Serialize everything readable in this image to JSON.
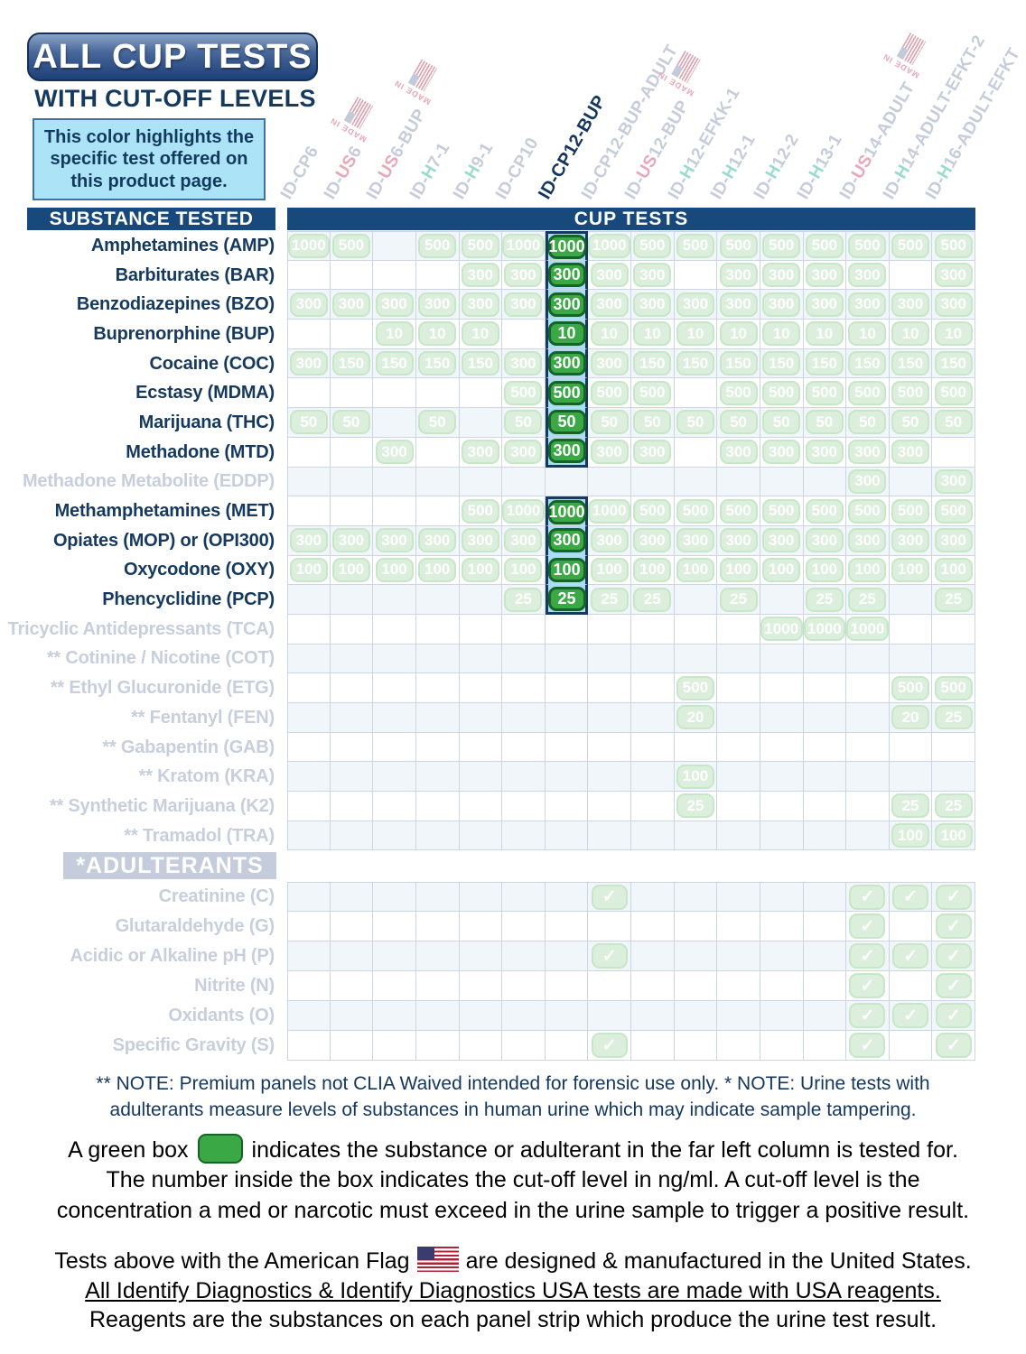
{
  "header": {
    "title": "ALL CUP TESTS",
    "subtitle": "WITH CUT-OFF LEVELS",
    "callout": "This color highlights the specific test offered on this product page."
  },
  "chart_data": {
    "type": "table",
    "title": "ALL CUP TESTS WITH CUT-OFF LEVELS",
    "units": "ng/ml",
    "section_headers": {
      "left": "SUBSTANCE TESTED",
      "right": "CUP TESTS"
    },
    "made_in_label": "MADE IN",
    "highlight_column": "ID-CP12-BUP",
    "columns": [
      {
        "label": "ID-CP6",
        "accent": null,
        "flag": false,
        "highlight": false
      },
      {
        "label": "ID-US6",
        "accent": "US",
        "flag": true,
        "highlight": false
      },
      {
        "label": "ID-US6-BUP",
        "accent": "US",
        "flag": true,
        "highlight": false
      },
      {
        "label": "ID-H7-1",
        "accent": "H",
        "flag": false,
        "highlight": false
      },
      {
        "label": "ID-H9-1",
        "accent": "H",
        "flag": false,
        "highlight": false
      },
      {
        "label": "ID-CP10",
        "accent": null,
        "flag": false,
        "highlight": false
      },
      {
        "label": "ID-CP12-BUP",
        "accent": null,
        "flag": false,
        "highlight": true
      },
      {
        "label": "ID-CP12-BUP-ADULT",
        "accent": null,
        "flag": false,
        "highlight": false
      },
      {
        "label": "ID-US12-BUP",
        "accent": "US",
        "flag": true,
        "highlight": false
      },
      {
        "label": "ID-H12-EFKK-1",
        "accent": "H",
        "flag": false,
        "highlight": false
      },
      {
        "label": "ID-H12-1",
        "accent": "H",
        "flag": false,
        "highlight": false
      },
      {
        "label": "ID-H12-2",
        "accent": "H",
        "flag": false,
        "highlight": false
      },
      {
        "label": "ID-H13-1",
        "accent": "H",
        "flag": false,
        "highlight": false
      },
      {
        "label": "ID-US14-ADULT",
        "accent": "US",
        "flag": true,
        "highlight": false
      },
      {
        "label": "ID-H14-ADULT-EFKT-2",
        "accent": "H",
        "flag": false,
        "highlight": false
      },
      {
        "label": "ID-H16-ADULT-EFKT",
        "accent": "H",
        "flag": false,
        "highlight": false
      }
    ],
    "substances": [
      {
        "label": "Amphetamines (AMP)",
        "active": true,
        "values": [
          "1000",
          "500",
          "",
          "500",
          "500",
          "1000",
          "1000",
          "1000",
          "500",
          "500",
          "500",
          "500",
          "500",
          "500",
          "500",
          "500"
        ]
      },
      {
        "label": "Barbiturates (BAR)",
        "active": true,
        "values": [
          "",
          "",
          "",
          "",
          "300",
          "300",
          "300",
          "300",
          "300",
          "",
          "300",
          "300",
          "300",
          "300",
          "",
          "300"
        ]
      },
      {
        "label": "Benzodiazepines (BZO)",
        "active": true,
        "values": [
          "300",
          "300",
          "300",
          "300",
          "300",
          "300",
          "300",
          "300",
          "300",
          "300",
          "300",
          "300",
          "300",
          "300",
          "300",
          "300"
        ]
      },
      {
        "label": "Buprenorphine (BUP)",
        "active": true,
        "values": [
          "",
          "",
          "10",
          "10",
          "10",
          "",
          "10",
          "10",
          "10",
          "10",
          "10",
          "10",
          "10",
          "10",
          "10",
          "10"
        ]
      },
      {
        "label": "Cocaine (COC)",
        "active": true,
        "values": [
          "300",
          "150",
          "150",
          "150",
          "150",
          "300",
          "300",
          "300",
          "150",
          "150",
          "150",
          "150",
          "150",
          "150",
          "150",
          "150"
        ]
      },
      {
        "label": "Ecstasy (MDMA)",
        "active": true,
        "values": [
          "",
          "",
          "",
          "",
          "",
          "500",
          "500",
          "500",
          "500",
          "",
          "500",
          "500",
          "500",
          "500",
          "500",
          "500"
        ]
      },
      {
        "label": "Marijuana (THC)",
        "active": true,
        "values": [
          "50",
          "50",
          "",
          "50",
          "",
          "50",
          "50",
          "50",
          "50",
          "50",
          "50",
          "50",
          "50",
          "50",
          "50",
          "50"
        ]
      },
      {
        "label": "Methadone (MTD)",
        "active": true,
        "values": [
          "",
          "",
          "300",
          "",
          "300",
          "300",
          "300",
          "300",
          "300",
          "",
          "300",
          "300",
          "300",
          "300",
          "300",
          ""
        ]
      },
      {
        "label": "Methadone Metabolite (EDDP)",
        "active": false,
        "values": [
          "",
          "",
          "",
          "",
          "",
          "",
          "",
          "",
          "",
          "",
          "",
          "",
          "",
          "300",
          "",
          "300"
        ]
      },
      {
        "label": "Methamphetamines (MET)",
        "active": true,
        "values": [
          "",
          "",
          "",
          "",
          "500",
          "1000",
          "1000",
          "1000",
          "500",
          "500",
          "500",
          "500",
          "500",
          "500",
          "500",
          "500"
        ]
      },
      {
        "label": "Opiates (MOP) or (OPI300)",
        "active": true,
        "values": [
          "300",
          "300",
          "300",
          "300",
          "300",
          "300",
          "300",
          "300",
          "300",
          "300",
          "300",
          "300",
          "300",
          "300",
          "300",
          "300"
        ]
      },
      {
        "label": "Oxycodone (OXY)",
        "active": true,
        "values": [
          "100",
          "100",
          "100",
          "100",
          "100",
          "100",
          "100",
          "100",
          "100",
          "100",
          "100",
          "100",
          "100",
          "100",
          "100",
          "100"
        ]
      },
      {
        "label": "Phencyclidine (PCP)",
        "active": true,
        "values": [
          "",
          "",
          "",
          "",
          "",
          "25",
          "25",
          "25",
          "25",
          "",
          "25",
          "",
          "25",
          "25",
          "",
          "25"
        ]
      },
      {
        "label": "Tricyclic Antidepressants (TCA)",
        "active": false,
        "values": [
          "",
          "",
          "",
          "",
          "",
          "",
          "",
          "",
          "",
          "",
          "",
          "1000",
          "1000",
          "1000",
          "",
          ""
        ]
      },
      {
        "label": "** Cotinine / Nicotine (COT)",
        "active": false,
        "values": [
          "",
          "",
          "",
          "",
          "",
          "",
          "",
          "",
          "",
          "",
          "",
          "",
          "",
          "",
          "",
          ""
        ]
      },
      {
        "label": "** Ethyl Glucuronide (ETG)",
        "active": false,
        "values": [
          "",
          "",
          "",
          "",
          "",
          "",
          "",
          "",
          "",
          "500",
          "",
          "",
          "",
          "",
          "500",
          "500"
        ]
      },
      {
        "label": "** Fentanyl (FEN)",
        "active": false,
        "values": [
          "",
          "",
          "",
          "",
          "",
          "",
          "",
          "",
          "",
          "20",
          "",
          "",
          "",
          "",
          "20",
          "25"
        ]
      },
      {
        "label": "** Gabapentin (GAB)",
        "active": false,
        "values": [
          "",
          "",
          "",
          "",
          "",
          "",
          "",
          "",
          "",
          "",
          "",
          "",
          "",
          "",
          "",
          ""
        ]
      },
      {
        "label": "** Kratom (KRA)",
        "active": false,
        "values": [
          "",
          "",
          "",
          "",
          "",
          "",
          "",
          "",
          "",
          "100",
          "",
          "",
          "",
          "",
          "",
          ""
        ]
      },
      {
        "label": "** Synthetic Marijuana (K2)",
        "active": false,
        "values": [
          "",
          "",
          "",
          "",
          "",
          "",
          "",
          "",
          "",
          "25",
          "",
          "",
          "",
          "",
          "25",
          "25"
        ]
      },
      {
        "label": "** Tramadol (TRA)",
        "active": false,
        "values": [
          "",
          "",
          "",
          "",
          "",
          "",
          "",
          "",
          "",
          "",
          "",
          "",
          "",
          "",
          "100",
          "100"
        ]
      }
    ],
    "adulterants_label": "*ADULTERANTS",
    "check_glyph": "✓",
    "adulterants": [
      {
        "label": "Creatinine (C)",
        "active": false,
        "checks": [
          0,
          0,
          0,
          0,
          0,
          0,
          0,
          1,
          0,
          0,
          0,
          0,
          0,
          1,
          1,
          1
        ]
      },
      {
        "label": "Glutaraldehyde (G)",
        "active": false,
        "checks": [
          0,
          0,
          0,
          0,
          0,
          0,
          0,
          0,
          0,
          0,
          0,
          0,
          0,
          1,
          0,
          1
        ]
      },
      {
        "label": "Acidic or Alkaline pH (P)",
        "active": false,
        "checks": [
          0,
          0,
          0,
          0,
          0,
          0,
          0,
          1,
          0,
          0,
          0,
          0,
          0,
          1,
          1,
          1
        ]
      },
      {
        "label": "Nitrite (N)",
        "active": false,
        "checks": [
          0,
          0,
          0,
          0,
          0,
          0,
          0,
          0,
          0,
          0,
          0,
          0,
          0,
          1,
          0,
          1
        ]
      },
      {
        "label": "Oxidants (O)",
        "active": false,
        "checks": [
          0,
          0,
          0,
          0,
          0,
          0,
          0,
          0,
          0,
          0,
          0,
          0,
          0,
          1,
          1,
          1
        ]
      },
      {
        "label": "Specific Gravity (S)",
        "active": false,
        "checks": [
          0,
          0,
          0,
          0,
          0,
          0,
          0,
          1,
          0,
          0,
          0,
          0,
          0,
          1,
          0,
          1
        ]
      }
    ]
  },
  "notes": {
    "line1": "** NOTE: Premium panels not CLIA Waived intended for forensic use only.    * NOTE: Urine tests with",
    "line2": "adulterants measure levels of substances in human urine which may indicate sample tampering."
  },
  "legend": {
    "line1_pre": "A green box",
    "line1_post": "indicates the substance or adulterant in the far left column is tested for.",
    "line2": "The number inside the box indicates the cut-off level in ng/ml. A cut-off level is the",
    "line3": "concentration a med or narcotic must exceed in the urine sample to trigger a positive result."
  },
  "footer": {
    "line1_pre": "Tests above with the American Flag",
    "line1_post": "are designed & manufactured in the United States.",
    "line2": "All Identify Diagnostics & Identify Diagnostics USA tests are made with USA reagents.",
    "line3": "Reagents are the substances on each panel strip which produce the urine test result."
  },
  "colors": {
    "navy": "#17497d",
    "active_green": "#3aa845",
    "active_green_border": "#156327",
    "faded_green": "#dcefdc",
    "highlight_blue": "#a9ddf4",
    "inactive_text": "#c8cfdc",
    "accent_us": "#e9a8ba",
    "accent_h": "#9adbce"
  }
}
